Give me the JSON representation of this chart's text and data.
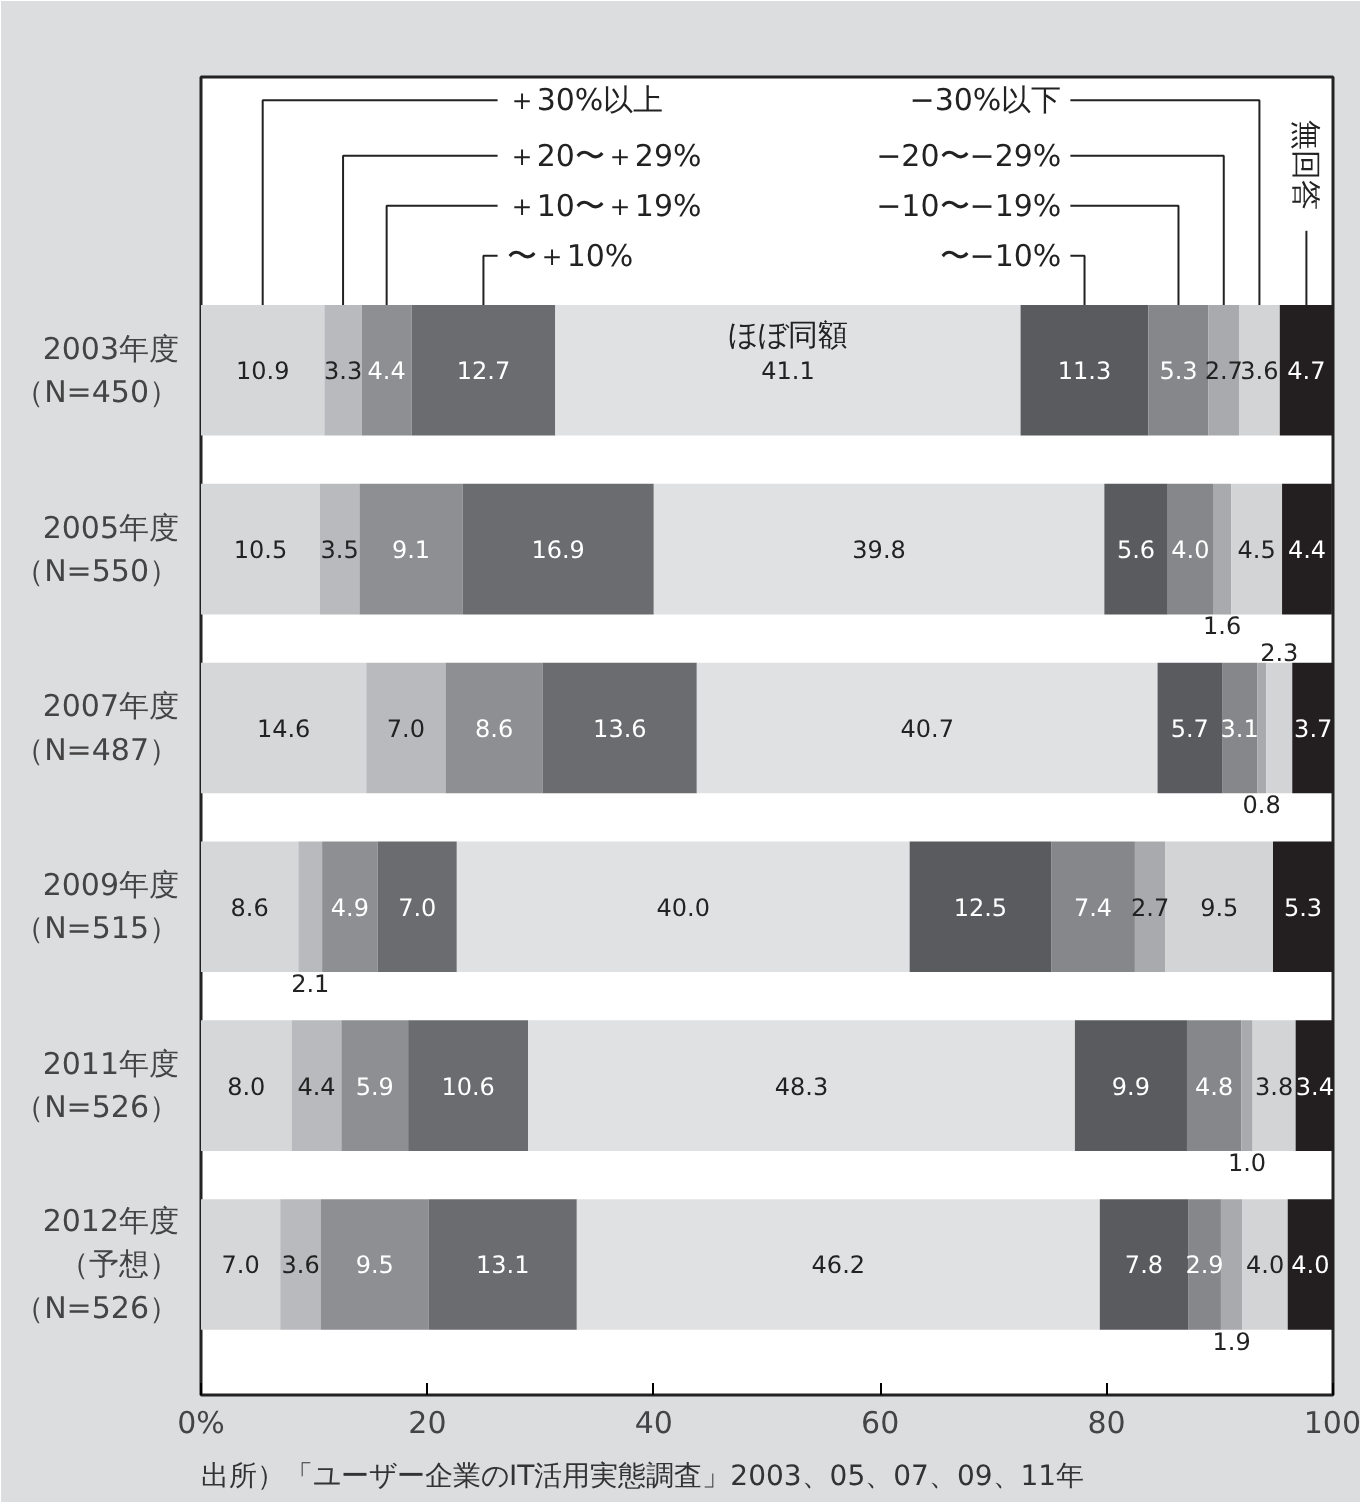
{
  "chart_data": {
    "type": "bar",
    "orientation": "horizontal",
    "stacked": true,
    "legend": "top",
    "grid": false,
    "categories": [
      "2003年度（N=450）",
      "2005年度（N=550）",
      "2007年度（N=487）",
      "2009年度（N=515）",
      "2011年度（N=526）",
      "2012年度（予想）（N=526）"
    ],
    "series": [
      {
        "name": "＋30%以上",
        "color": "#d6d7d9",
        "values": [
          10.9,
          10.5,
          14.6,
          8.6,
          8.0,
          7.0
        ],
        "value_labels": [
          "10.9",
          "10.5",
          "14.6",
          "8.6",
          "8.0",
          "7.0"
        ]
      },
      {
        "name": "＋20〜＋29%",
        "color": "#b9babd",
        "values": [
          3.3,
          3.5,
          7.0,
          2.1,
          4.4,
          3.6
        ],
        "value_labels": [
          "3.3",
          "3.5",
          "7.0",
          "2.1",
          "4.4",
          "3.6"
        ]
      },
      {
        "name": "＋10〜＋19%",
        "color": "#8e8f93",
        "values": [
          4.4,
          9.1,
          8.6,
          4.9,
          5.9,
          9.5
        ],
        "value_labels": [
          "4.4",
          "9.1",
          "8.6",
          "4.9",
          "5.9",
          "9.5"
        ]
      },
      {
        "name": "〜＋10%",
        "color": "#6b6c70",
        "values": [
          12.7,
          16.9,
          13.6,
          7.0,
          10.6,
          13.1
        ],
        "value_labels": [
          "12.7",
          "16.9",
          "13.6",
          "7.0",
          "10.6",
          "13.1"
        ]
      },
      {
        "name": "ほぼ同額",
        "color": "#e0e1e3",
        "values": [
          41.1,
          39.8,
          40.7,
          40.0,
          48.3,
          46.2
        ],
        "value_labels": [
          "41.1",
          "39.8",
          "40.7",
          "40.0",
          "48.3",
          "46.2"
        ]
      },
      {
        "name": "〜−10%",
        "color": "#5a5b5f",
        "values": [
          11.3,
          5.6,
          5.7,
          12.5,
          9.9,
          7.8
        ],
        "value_labels": [
          "11.3",
          "5.6",
          "5.7",
          "12.5",
          "9.9",
          "7.8"
        ]
      },
      {
        "name": "−10〜−19%",
        "color": "#86878b",
        "values": [
          5.3,
          4.0,
          3.1,
          7.4,
          4.8,
          2.9
        ],
        "value_labels": [
          "5.3",
          "4.0",
          "3.1",
          "7.4",
          "4.8",
          "2.9"
        ]
      },
      {
        "name": "−20〜−29%",
        "color": "#a9aaad",
        "values": [
          2.7,
          1.6,
          0.8,
          2.7,
          1.0,
          1.9
        ],
        "value_labels": [
          "2.7",
          "1.6",
          "0.8",
          "2.7",
          "1.0",
          "1.9"
        ]
      },
      {
        "name": "−30%以下",
        "color": "#d3d4d6",
        "values": [
          3.6,
          4.5,
          2.3,
          9.5,
          3.8,
          4.0
        ],
        "value_labels": [
          "3.6",
          "4.5",
          "2.3",
          "9.5",
          "3.8",
          "4.0"
        ]
      },
      {
        "name": "無回答",
        "color": "#231f20",
        "values": [
          4.7,
          4.4,
          3.7,
          5.3,
          3.4,
          4.0
        ],
        "value_labels": [
          "4.7",
          "4.4",
          "3.7",
          "5.3",
          "3.4",
          "4.0"
        ]
      }
    ],
    "xlim": [
      0,
      100
    ],
    "xticks": [
      {
        "value": 0,
        "label": "0%"
      },
      20,
      40,
      60,
      80,
      100
    ],
    "annotations": [
      "出所）「ユーザー企業のIT活用実態調査」2003、05、07、09、11年"
    ]
  }
}
